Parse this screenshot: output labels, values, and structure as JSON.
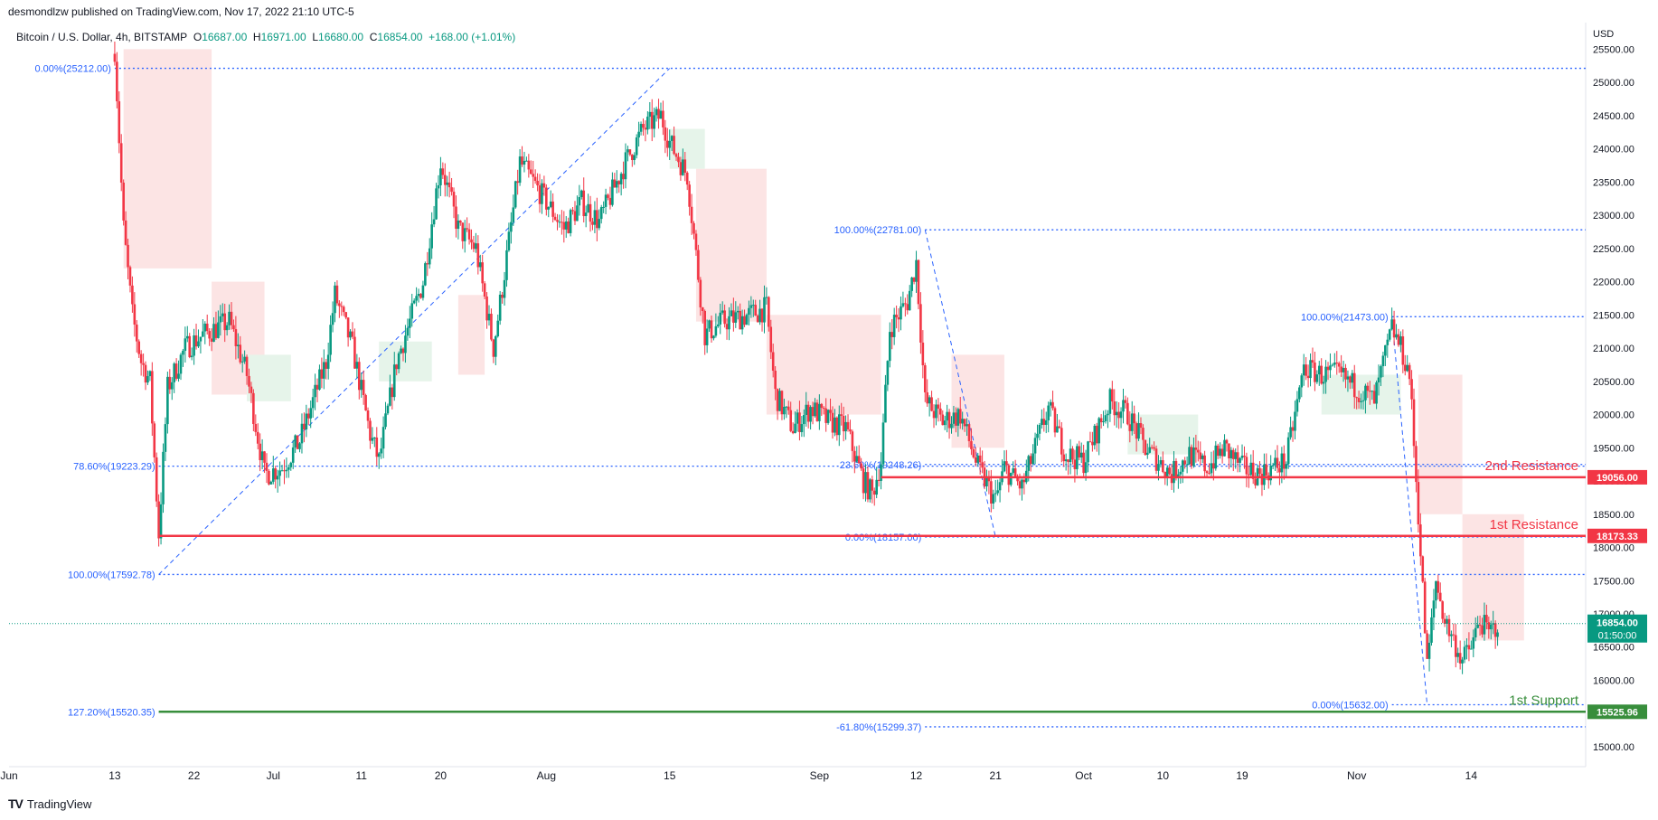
{
  "publisher": "desmondlzw published on TradingView.com, Nov 17, 2022 21:10 UTC-5",
  "symbol": {
    "name": "Bitcoin / U.S. Dollar, 4h, BITSTAMP",
    "o_label": "O",
    "o": "16687.00",
    "h_label": "H",
    "h": "16971.00",
    "l_label": "L",
    "l": "16680.00",
    "c_label": "C",
    "c": "16854.00",
    "change": "+168.00 (+1.01%)"
  },
  "footer": {
    "logo": "TV",
    "brand": "TradingView"
  },
  "colors": {
    "up": "#089981",
    "down": "#f23645",
    "fib": "#2962ff",
    "resistance": "#f23645",
    "support": "#388e3c",
    "cloud_red": "#fce4e4",
    "cloud_green": "#e6f4ea"
  },
  "chart_data": {
    "type": "candlestick",
    "currency": "USD",
    "ylim": [
      14700,
      25900
    ],
    "x_range": [
      "2022-06-01",
      "2022-11-27"
    ],
    "y_ticks": [
      15000,
      15500,
      16000,
      16500,
      17000,
      17500,
      18000,
      18500,
      19000,
      19500,
      20000,
      20500,
      21000,
      21500,
      22000,
      22500,
      23000,
      23500,
      24000,
      24500,
      25000,
      25500
    ],
    "y_tick_labels": [
      "15000.00",
      "15500.00",
      "16000.00",
      "16500.00",
      "17000.00",
      "17500.00",
      "18000.00",
      "18500.00",
      "19000.00",
      "19500.00",
      "20000.00",
      "20500.00",
      "21000.00",
      "21500.00",
      "22000.00",
      "22500.00",
      "23000.00",
      "23500.00",
      "24000.00",
      "24500.00",
      "25000.00",
      "25500.00"
    ],
    "x_ticks": [
      {
        "date": "2022-06-01",
        "label": "Jun"
      },
      {
        "date": "2022-06-13",
        "label": "13"
      },
      {
        "date": "2022-06-22",
        "label": "22"
      },
      {
        "date": "2022-07-01",
        "label": "Jul"
      },
      {
        "date": "2022-07-11",
        "label": "11"
      },
      {
        "date": "2022-07-20",
        "label": "20"
      },
      {
        "date": "2022-08-01",
        "label": "Aug"
      },
      {
        "date": "2022-08-15",
        "label": "15"
      },
      {
        "date": "2022-09-01",
        "label": "Sep"
      },
      {
        "date": "2022-09-12",
        "label": "12"
      },
      {
        "date": "2022-09-21",
        "label": "21"
      },
      {
        "date": "2022-10-01",
        "label": "Oct"
      },
      {
        "date": "2022-10-10",
        "label": "10"
      },
      {
        "date": "2022-10-19",
        "label": "19"
      },
      {
        "date": "2022-11-01",
        "label": "Nov"
      },
      {
        "date": "2022-11-14",
        "label": "14"
      }
    ],
    "price_path": [
      [
        "2022-06-13",
        25500
      ],
      [
        "2022-06-14",
        22800
      ],
      [
        "2022-06-15",
        21500
      ],
      [
        "2022-06-16",
        20800
      ],
      [
        "2022-06-17",
        20500
      ],
      [
        "2022-06-18",
        18200
      ],
      [
        "2022-06-19",
        20400
      ],
      [
        "2022-06-21",
        21000
      ],
      [
        "2022-06-23",
        21200
      ],
      [
        "2022-06-26",
        21400
      ],
      [
        "2022-06-28",
        20600
      ],
      [
        "2022-06-30",
        19100
      ],
      [
        "2022-07-02",
        19200
      ],
      [
        "2022-07-04",
        19600
      ],
      [
        "2022-07-07",
        20800
      ],
      [
        "2022-07-08",
        21800
      ],
      [
        "2022-07-10",
        21000
      ],
      [
        "2022-07-12",
        19700
      ],
      [
        "2022-07-13",
        19300
      ],
      [
        "2022-07-15",
        20800
      ],
      [
        "2022-07-18",
        22000
      ],
      [
        "2022-07-20",
        23800
      ],
      [
        "2022-07-22",
        22800
      ],
      [
        "2022-07-24",
        22500
      ],
      [
        "2022-07-26",
        21000
      ],
      [
        "2022-07-27",
        21900
      ],
      [
        "2022-07-29",
        23800
      ],
      [
        "2022-08-01",
        23200
      ],
      [
        "2022-08-03",
        22800
      ],
      [
        "2022-08-05",
        23200
      ],
      [
        "2022-08-07",
        22900
      ],
      [
        "2022-08-10",
        23800
      ],
      [
        "2022-08-12",
        24300
      ],
      [
        "2022-08-14",
        24500
      ],
      [
        "2022-08-15",
        24100
      ],
      [
        "2022-08-17",
        23600
      ],
      [
        "2022-08-19",
        21200
      ],
      [
        "2022-08-21",
        21400
      ],
      [
        "2022-08-24",
        21500
      ],
      [
        "2022-08-26",
        21600
      ],
      [
        "2022-08-27",
        20300
      ],
      [
        "2022-08-29",
        19800
      ],
      [
        "2022-08-31",
        20100
      ],
      [
        "2022-09-02",
        19900
      ],
      [
        "2022-09-04",
        19800
      ],
      [
        "2022-09-06",
        19000
      ],
      [
        "2022-09-07",
        18800
      ],
      [
        "2022-09-08",
        19300
      ],
      [
        "2022-09-09",
        21300
      ],
      [
        "2022-09-11",
        21700
      ],
      [
        "2022-09-12",
        22300
      ],
      [
        "2022-09-13",
        20200
      ],
      [
        "2022-09-15",
        19900
      ],
      [
        "2022-09-17",
        20000
      ],
      [
        "2022-09-19",
        19200
      ],
      [
        "2022-09-21",
        18700
      ],
      [
        "2022-09-22",
        19200
      ],
      [
        "2022-09-24",
        18900
      ],
      [
        "2022-09-27",
        20100
      ],
      [
        "2022-09-29",
        19400
      ],
      [
        "2022-10-01",
        19300
      ],
      [
        "2022-10-04",
        20200
      ],
      [
        "2022-10-06",
        20000
      ],
      [
        "2022-10-08",
        19500
      ],
      [
        "2022-10-11",
        19100
      ],
      [
        "2022-10-13",
        19400
      ],
      [
        "2022-10-15",
        19200
      ],
      [
        "2022-10-17",
        19500
      ],
      [
        "2022-10-19",
        19200
      ],
      [
        "2022-10-21",
        19100
      ],
      [
        "2022-10-24",
        19300
      ],
      [
        "2022-10-26",
        20700
      ],
      [
        "2022-10-28",
        20600
      ],
      [
        "2022-10-30",
        20600
      ],
      [
        "2022-11-01",
        20400
      ],
      [
        "2022-11-03",
        20200
      ],
      [
        "2022-11-05",
        21300
      ],
      [
        "2022-11-06",
        21000
      ],
      [
        "2022-11-07",
        20600
      ],
      [
        "2022-11-08",
        18500
      ],
      [
        "2022-11-09",
        16200
      ],
      [
        "2022-11-10",
        17500
      ],
      [
        "2022-11-11",
        16900
      ],
      [
        "2022-11-12",
        16600
      ],
      [
        "2022-11-13",
        16300
      ],
      [
        "2022-11-14",
        16500
      ],
      [
        "2022-11-15",
        16900
      ],
      [
        "2022-11-16",
        16700
      ],
      [
        "2022-11-17",
        16854
      ]
    ],
    "cloud_red": [
      {
        "x0": "2022-06-14",
        "x1": "2022-06-24",
        "top": 25500,
        "bottom": 22200
      },
      {
        "x0": "2022-06-24",
        "x1": "2022-06-30",
        "top": 22000,
        "bottom": 20300
      },
      {
        "x0": "2022-07-22",
        "x1": "2022-07-25",
        "top": 21800,
        "bottom": 20600
      },
      {
        "x0": "2022-08-18",
        "x1": "2022-08-26",
        "top": 23700,
        "bottom": 21400
      },
      {
        "x0": "2022-08-26",
        "x1": "2022-09-08",
        "top": 21500,
        "bottom": 20000
      },
      {
        "x0": "2022-09-16",
        "x1": "2022-09-22",
        "top": 20900,
        "bottom": 19500
      },
      {
        "x0": "2022-11-08",
        "x1": "2022-11-13",
        "top": 20600,
        "bottom": 18500
      },
      {
        "x0": "2022-11-13",
        "x1": "2022-11-20",
        "top": 18500,
        "bottom": 16600
      }
    ],
    "cloud_green": [
      {
        "x0": "2022-06-28",
        "x1": "2022-07-03",
        "top": 20900,
        "bottom": 20200
      },
      {
        "x0": "2022-07-13",
        "x1": "2022-07-19",
        "top": 21100,
        "bottom": 20500
      },
      {
        "x0": "2022-08-15",
        "x1": "2022-08-19",
        "top": 24300,
        "bottom": 23700
      },
      {
        "x0": "2022-10-06",
        "x1": "2022-10-14",
        "top": 20000,
        "bottom": 19400
      },
      {
        "x0": "2022-10-28",
        "x1": "2022-11-06",
        "top": 20600,
        "bottom": 20000
      }
    ],
    "fib_levels": [
      {
        "label": "0.00%(25212.00)",
        "price": 25212,
        "x0": "2022-06-13",
        "x1": "2022-11-27"
      },
      {
        "label": "78.60%(19223.29)",
        "price": 19223.29,
        "x0": "2022-06-18",
        "x1": "2022-11-27"
      },
      {
        "label": "100.00%(17592.78)",
        "price": 17592.78,
        "x0": "2022-06-18",
        "x1": "2022-11-27"
      },
      {
        "label": "127.20%(15520.35)",
        "price": 15520.35,
        "x0": "2022-06-18",
        "x1": "2022-11-27"
      },
      {
        "label": "100.00%(22781.00)",
        "price": 22781,
        "x0": "2022-09-13",
        "x1": "2022-11-27"
      },
      {
        "label": "23.60%(19248.26)",
        "price": 19248.26,
        "x0": "2022-09-13",
        "x1": "2022-11-27"
      },
      {
        "label": "0.00%(18157.00)",
        "price": 18157,
        "x0": "2022-09-13",
        "x1": "2022-11-27"
      },
      {
        "label": "-61.80%(15299.37)",
        "price": 15299.37,
        "x0": "2022-09-13",
        "x1": "2022-11-27"
      },
      {
        "label": "100.00%(21473.00)",
        "price": 21473,
        "x0": "2022-11-05",
        "x1": "2022-11-27"
      },
      {
        "label": "0.00%(15632.00)",
        "price": 15632,
        "x0": "2022-11-05",
        "x1": "2022-11-27"
      }
    ],
    "fib_diagonals": [
      {
        "from": [
          "2022-06-18",
          17592.78
        ],
        "to": [
          "2022-08-15",
          25212
        ]
      },
      {
        "from": [
          "2022-09-13",
          22781
        ],
        "to": [
          "2022-09-21",
          18157
        ]
      },
      {
        "from": [
          "2022-11-05",
          21473
        ],
        "to": [
          "2022-11-09",
          15632
        ]
      }
    ],
    "key_levels": [
      {
        "name": "2nd Resistance",
        "price": 19056.0,
        "label": "19056.00",
        "x0": "2022-09-08",
        "kind": "resistance"
      },
      {
        "name": "1st Resistance",
        "price": 18173.33,
        "label": "18173.33",
        "x0": "2022-06-18",
        "kind": "resistance"
      },
      {
        "name": "1st Support",
        "price": 15525.96,
        "label": "15525.96",
        "x0": "2022-06-18",
        "kind": "support"
      }
    ],
    "last_price": {
      "value": 16854.0,
      "label": "16854.00",
      "countdown": "01:50:00"
    }
  }
}
